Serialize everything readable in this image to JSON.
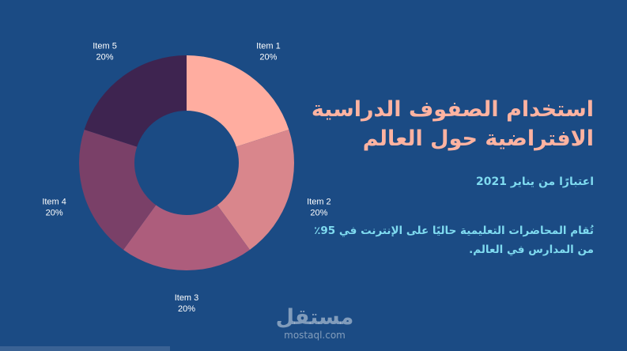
{
  "slide": {
    "title": "استخدام الصفوف الدراسية الافتراضية حول العالم",
    "subtitle": "اعتبارًا من يناير 2021",
    "body": "تُقام المحاضرات التعليمية حاليًا على الإنترنت في 95٪ من المدارس في العالم."
  },
  "watermark": {
    "logo": "مستقل",
    "site": "mostaql.com"
  },
  "colors": {
    "background": "#1b4b84",
    "title": "#ffb3a1",
    "accent_text": "#7fdbf0"
  },
  "chart_data": {
    "type": "pie",
    "donut": true,
    "categories": [
      "Item 1",
      "Item 2",
      "Item 3",
      "Item 4",
      "Item 5"
    ],
    "values": [
      20,
      20,
      20,
      20,
      20
    ],
    "labels": [
      "20%",
      "20%",
      "20%",
      "20%",
      "20%"
    ],
    "colors": [
      "#ffada0",
      "#d9868c",
      "#ad5d7c",
      "#7a4068",
      "#3e2450"
    ]
  }
}
